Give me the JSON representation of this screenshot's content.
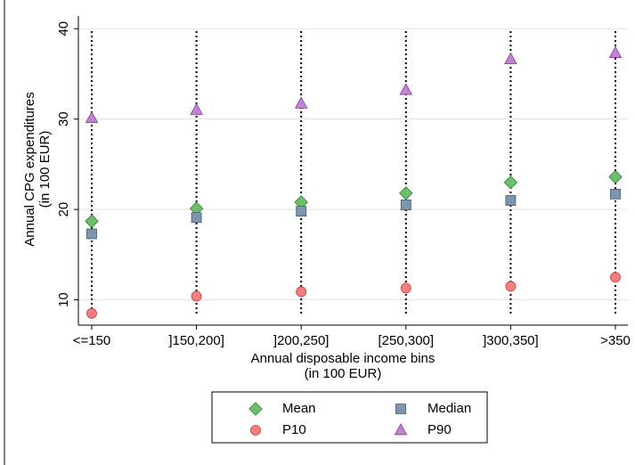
{
  "chart_data": {
    "type": "scatter",
    "xlabel": [
      "Annual disposable income bins",
      "(in 100 EUR)"
    ],
    "ylabel": [
      "Annual CPG expenditures",
      "(in 100 EUR)"
    ],
    "categories": [
      "<=150",
      "]150,200]",
      "]200,250]",
      "[250,300]",
      "]300,350]",
      ">350"
    ],
    "series": [
      {
        "name": "Mean",
        "color": "#6cc06a",
        "marker": "diamond",
        "values": [
          18.7,
          20.1,
          20.8,
          21.8,
          23.0,
          23.6
        ]
      },
      {
        "name": "Median",
        "color": "#7d96ad",
        "marker": "square",
        "values": [
          17.3,
          19.1,
          19.8,
          20.5,
          21.0,
          21.7
        ]
      },
      {
        "name": "P10",
        "color": "#f57f7f",
        "marker": "circle",
        "values": [
          8.5,
          10.4,
          10.9,
          11.3,
          11.5,
          12.5
        ]
      },
      {
        "name": "P90",
        "color": "#c283d3",
        "marker": "triangle",
        "values": [
          30.1,
          31.0,
          31.7,
          33.2,
          36.6,
          37.3
        ]
      }
    ],
    "ylim": [
      7.2,
      41.4
    ],
    "yticks": [
      10,
      20,
      30,
      40
    ],
    "grid": true,
    "legend": "bottom"
  }
}
